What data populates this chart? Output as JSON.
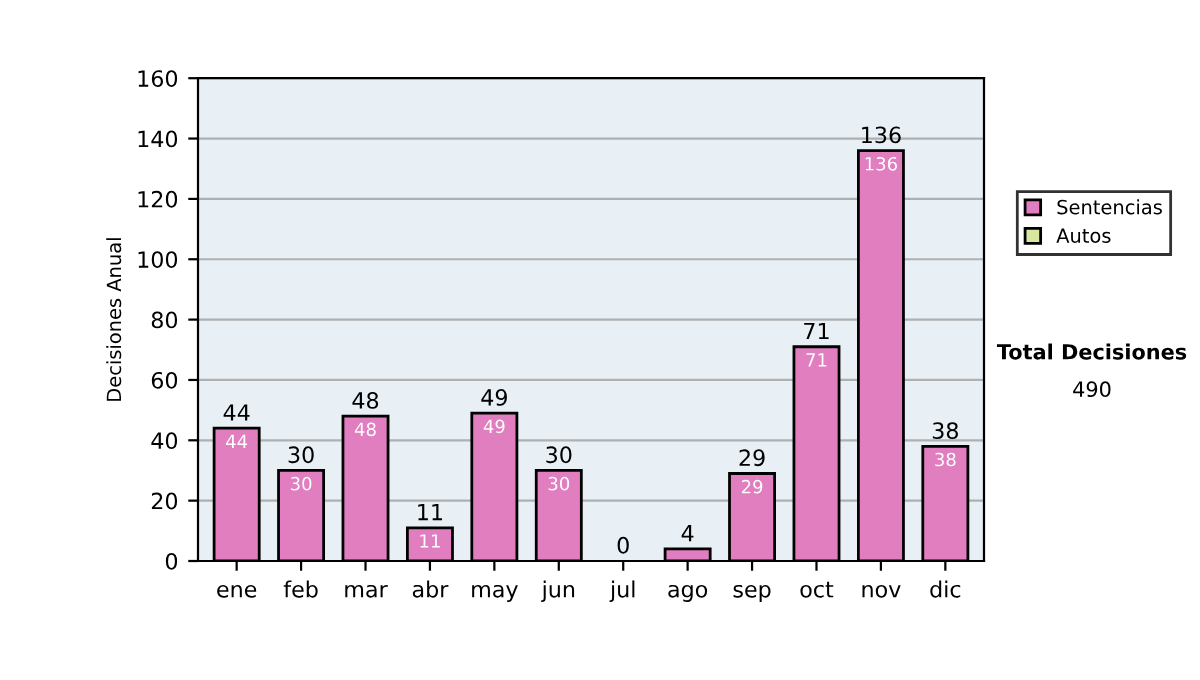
{
  "chart_data": {
    "type": "bar",
    "stacked": true,
    "ylabel": "Decisiones Anual",
    "categories": [
      "ene",
      "feb",
      "mar",
      "abr",
      "may",
      "jun",
      "jul",
      "ago",
      "sep",
      "oct",
      "nov",
      "dic"
    ],
    "series": [
      {
        "name": "Sentencias",
        "color": "#e07ec0",
        "values": [
          44,
          30,
          48,
          11,
          49,
          30,
          0,
          4,
          29,
          71,
          136,
          38
        ],
        "value_labels": [
          "44",
          "30",
          "48",
          "11",
          "49",
          "30",
          null,
          null,
          "29",
          "71",
          "136",
          "38"
        ]
      },
      {
        "name": "Autos",
        "color": "#d8e8a0",
        "values": [
          0,
          0,
          0,
          0,
          0,
          0,
          0,
          0,
          0,
          0,
          0,
          0
        ]
      }
    ],
    "totals": [
      "44",
      "30",
      "48",
      "11",
      "49",
      "30",
      "0",
      "4",
      "29",
      "71",
      "136",
      "38"
    ],
    "ylim": [
      0,
      160
    ],
    "yticks": [
      0,
      20,
      40,
      60,
      80,
      100,
      120,
      140,
      160
    ],
    "grid": "y",
    "legend": "right",
    "annotations": [
      "Total Decisiones",
      "490"
    ]
  }
}
